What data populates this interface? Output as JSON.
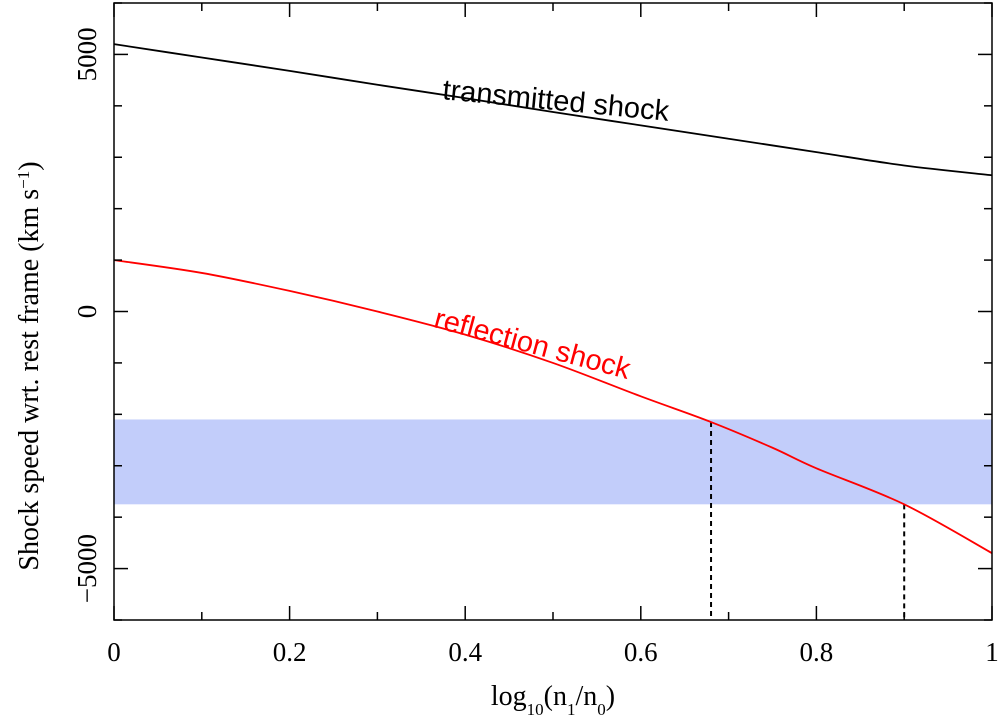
{
  "chart_data": {
    "type": "line",
    "title": "",
    "xlabel": "log₁₀(n₁/n₀)",
    "xlabel_parts": {
      "pre": "log",
      "sub1": "10",
      "mid1": "(n",
      "sub2": "1",
      "mid2": "/n",
      "sub3": "0",
      "post": ")"
    },
    "ylabel": "Shock speed wrt. rest frame (km s⁻¹)",
    "ylabel_parts": {
      "main": "Shock speed wrt. rest frame (km s",
      "sup": "−1",
      "post": ")"
    },
    "xlim": [
      0,
      1
    ],
    "ylim": [
      -6000,
      6000
    ],
    "x_ticks": [
      0,
      0.2,
      0.4,
      0.6,
      0.8,
      1
    ],
    "x_tick_labels": [
      "0",
      "0.2",
      "0.4",
      "0.6",
      "0.8",
      "1"
    ],
    "y_ticks": [
      -5000,
      0,
      5000
    ],
    "y_tick_labels": [
      "−5000",
      "0",
      "5000"
    ],
    "series": [
      {
        "name": "transmitted shock",
        "color": "#000000",
        "x": [
          0,
          0.1,
          0.2,
          0.3,
          0.4,
          0.5,
          0.6,
          0.7,
          0.8,
          0.9,
          1.0
        ],
        "y": [
          5200,
          4940,
          4680,
          4410,
          4150,
          3880,
          3620,
          3360,
          3100,
          2840,
          2650
        ]
      },
      {
        "name": "reflection shock",
        "color": "#ff0000",
        "x": [
          0,
          0.1,
          0.2,
          0.3,
          0.4,
          0.5,
          0.6,
          0.68,
          0.75,
          0.8,
          0.9,
          1.0
        ],
        "y": [
          1000,
          750,
          400,
          0,
          -450,
          -1000,
          -1650,
          -2150,
          -2650,
          -3050,
          -3750,
          -4700
        ]
      }
    ],
    "shaded_band": {
      "y_range": [
        -3750,
        -2100
      ],
      "color": "#c2cdfa"
    },
    "dotted_markers": [
      {
        "x": 0.68,
        "y_top": -2150
      },
      {
        "x": 0.9,
        "y_top": -3750
      }
    ]
  }
}
